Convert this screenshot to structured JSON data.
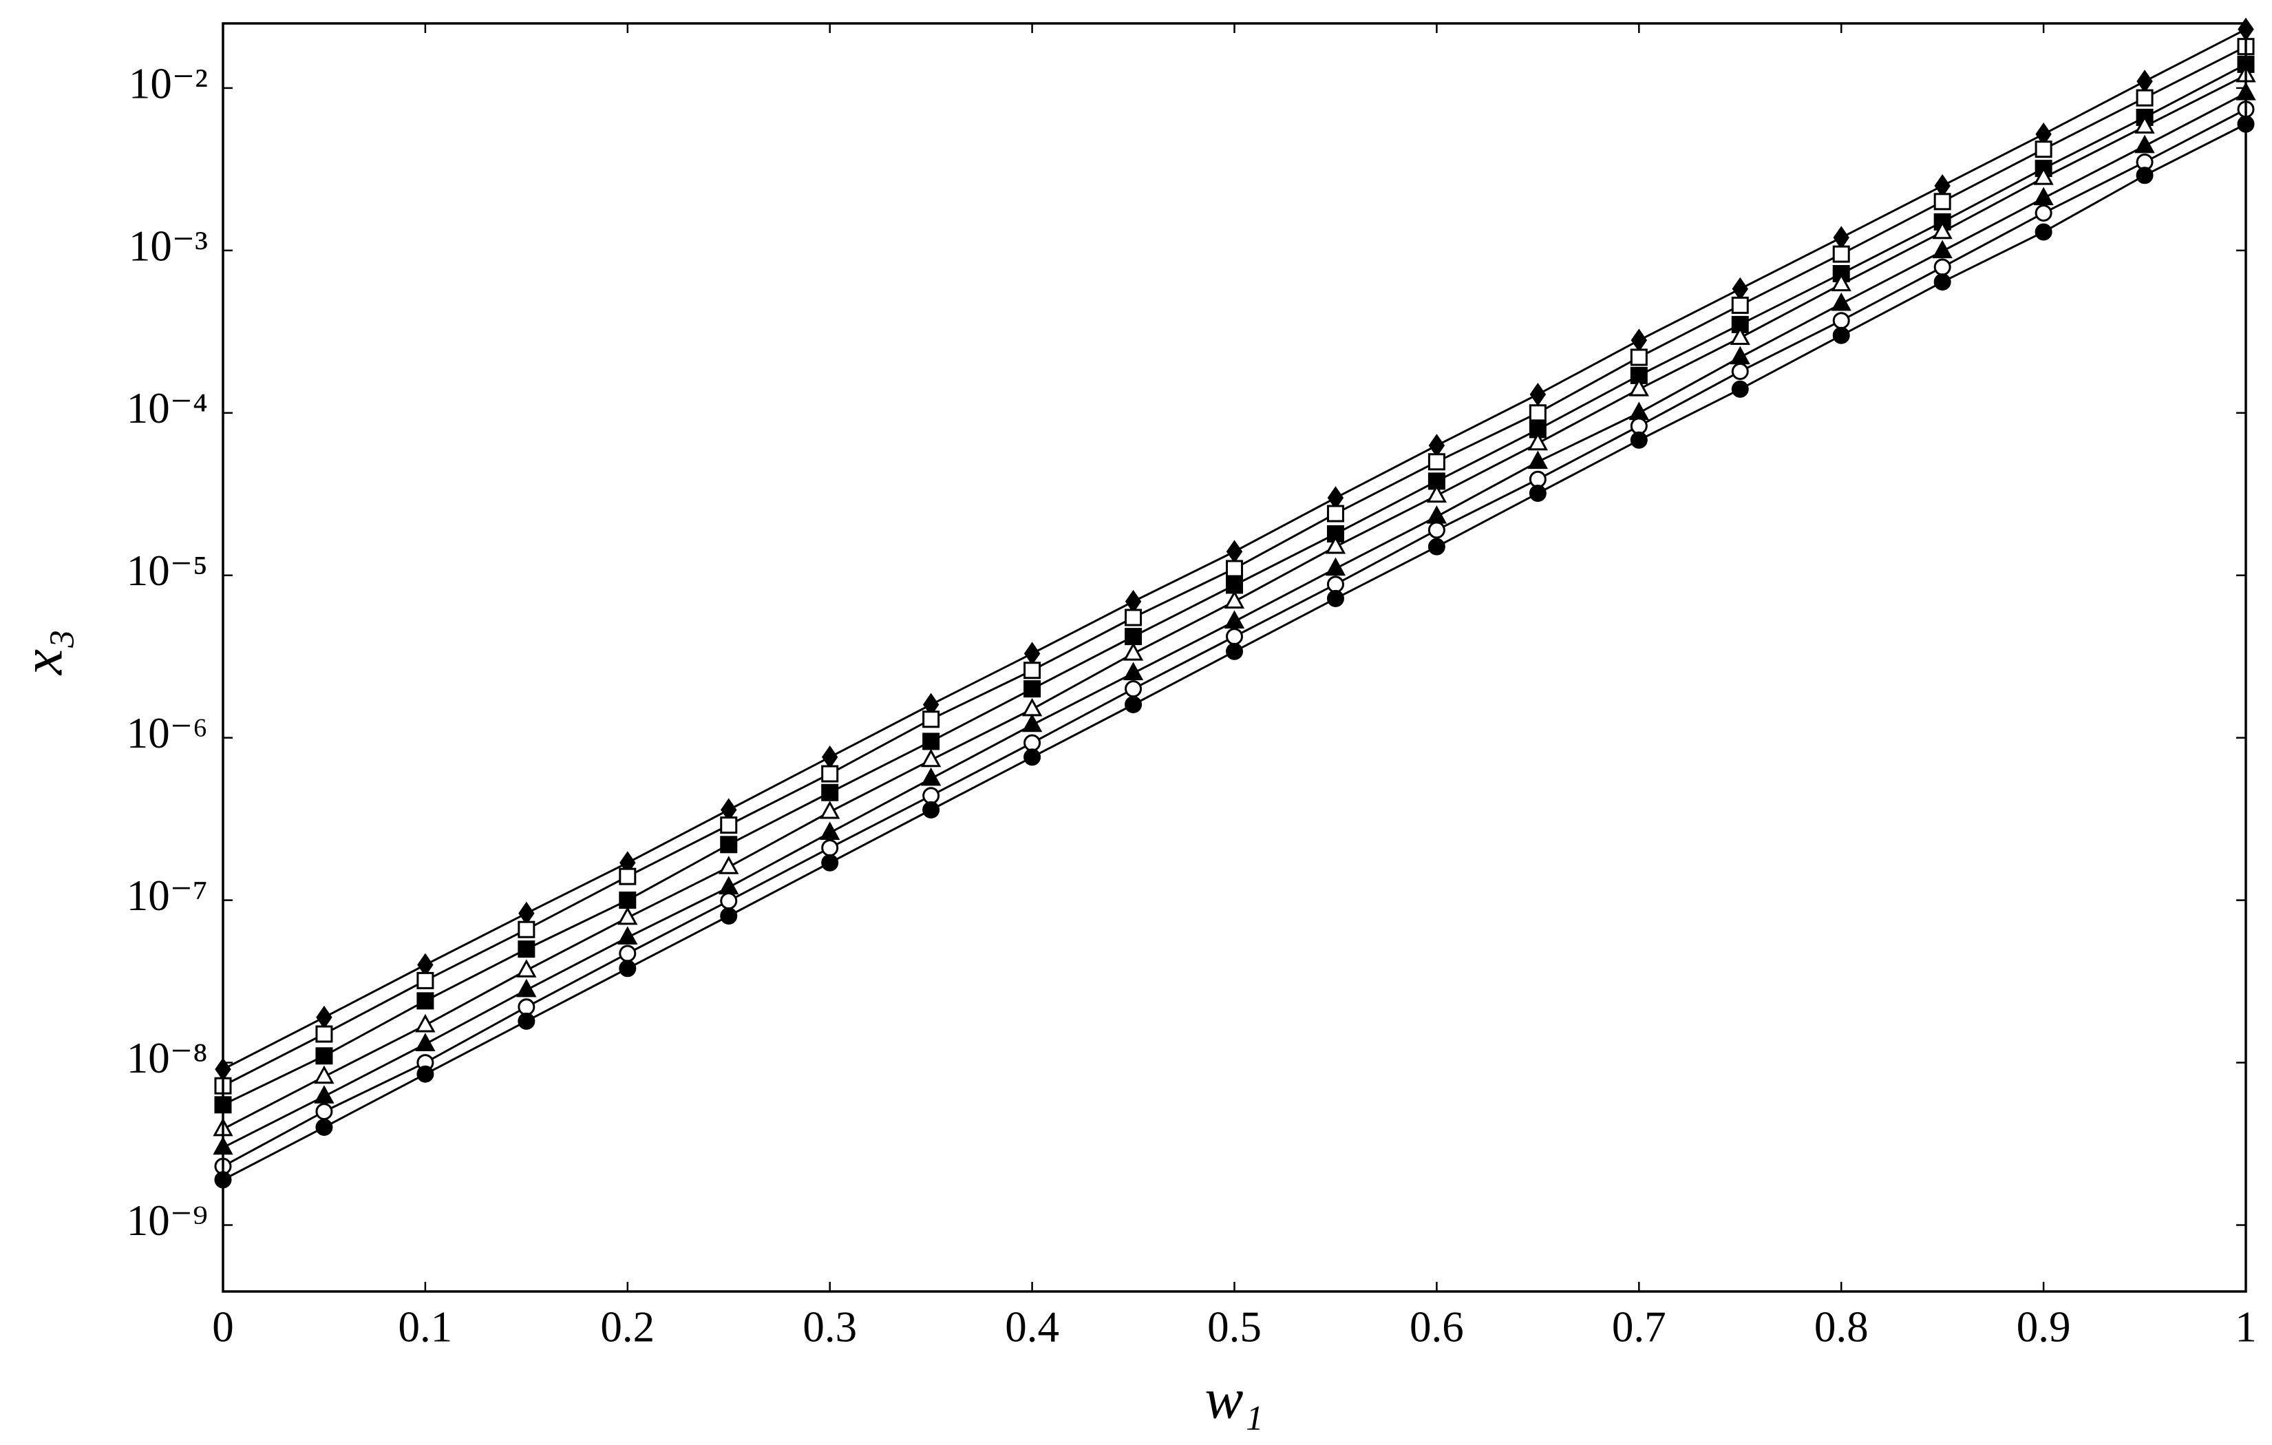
{
  "chart_data": {
    "type": "line",
    "xlabel": "w₁",
    "ylabel": "x₃",
    "log_y": true,
    "xlim": [
      0,
      1
    ],
    "xticks": [
      0,
      0.1,
      0.2,
      0.3,
      0.4,
      0.5,
      0.6,
      0.7,
      0.8,
      0.9,
      1
    ],
    "ylim": [
      3.9e-10,
      0.025
    ],
    "yticks": [
      {
        "value": 1e-09,
        "label": "10⁻⁹"
      },
      {
        "value": 1e-08,
        "label": "10⁻⁸"
      },
      {
        "value": 1e-07,
        "label": "10⁻⁷"
      },
      {
        "value": 1e-06,
        "label": "10⁻⁶"
      },
      {
        "value": 1e-05,
        "label": "10⁻⁵"
      },
      {
        "value": 0.0001,
        "label": "10⁻⁴"
      },
      {
        "value": 0.001,
        "label": "10⁻³"
      },
      {
        "value": 0.01,
        "label": "10⁻²"
      }
    ],
    "x": [
      0,
      0.05,
      0.1,
      0.15,
      0.2,
      0.25,
      0.3,
      0.35,
      0.4,
      0.45,
      0.5,
      0.55,
      0.6,
      0.65,
      0.7,
      0.75,
      0.8,
      0.85,
      0.9,
      0.95,
      1
    ],
    "series": [
      {
        "color": "#000000",
        "marker": "diamond",
        "values": [
          9.1e-09,
          1.9e-08,
          4e-08,
          8.3e-08,
          1.7e-07,
          3.6e-07,
          7.6e-07,
          1.6e-06,
          3.3e-06,
          6.9e-06,
          1.4e-05,
          3e-05,
          6.3e-05,
          0.00013,
          0.00028,
          0.00058,
          0.0012,
          0.0025,
          0.0052,
          0.011,
          0.023
        ]
      },
      {
        "color": "#000000",
        "marker": "square-open",
        "values": [
          7.2e-09,
          1.5e-08,
          3.2e-08,
          6.6e-08,
          1.4e-07,
          2.9e-07,
          6e-07,
          1.3e-06,
          2.6e-06,
          5.5e-06,
          1.1e-05,
          2.4e-05,
          5e-05,
          0.0001,
          0.00022,
          0.00046,
          0.00095,
          0.002,
          0.0042,
          0.0087,
          0.018
        ]
      },
      {
        "color": "#000000",
        "marker": "square",
        "values": [
          5.5e-09,
          1.1e-08,
          2.4e-08,
          5e-08,
          1e-07,
          2.2e-07,
          4.6e-07,
          9.5e-07,
          2e-06,
          4.2e-06,
          8.7e-06,
          1.8e-05,
          3.8e-05,
          7.9e-05,
          0.00017,
          0.00035,
          0.00072,
          0.0015,
          0.0032,
          0.0066,
          0.014
        ]
      },
      {
        "color": "#000000",
        "marker": "triangle-open",
        "values": [
          3.9e-09,
          8.2e-09,
          1.7e-08,
          3.7e-08,
          7.8e-08,
          1.6e-07,
          3.5e-07,
          7.3e-07,
          1.5e-06,
          3.3e-06,
          6.9e-06,
          1.5e-05,
          3.1e-05,
          6.5e-05,
          0.00014,
          0.00029,
          0.00062,
          0.0013,
          0.0028,
          0.0058,
          0.012
        ]
      },
      {
        "color": "#000000",
        "marker": "triangle",
        "values": [
          3e-09,
          6.2e-09,
          1.3e-08,
          2.8e-08,
          5.9e-08,
          1.2e-07,
          2.6e-07,
          5.6e-07,
          1.2e-06,
          2.5e-06,
          5.2e-06,
          1.1e-05,
          2.3e-05,
          5e-05,
          0.0001,
          0.00022,
          0.00047,
          0.00099,
          0.0021,
          0.0044,
          0.0093
        ]
      },
      {
        "color": "#000000",
        "marker": "circle-open",
        "values": [
          2.3e-09,
          5e-09,
          1e-08,
          2.2e-08,
          4.7e-08,
          9.9e-08,
          2.1e-07,
          4.4e-07,
          9.3e-07,
          2e-06,
          4.2e-06,
          8.8e-06,
          1.9e-05,
          3.9e-05,
          8.3e-05,
          0.00018,
          0.00037,
          0.00079,
          0.0017,
          0.0035,
          0.0074
        ]
      },
      {
        "color": "#000000",
        "marker": "circle",
        "values": [
          1.9e-09,
          4e-09,
          8.5e-09,
          1.8e-08,
          3.8e-08,
          8e-08,
          1.7e-07,
          3.6e-07,
          7.6e-07,
          1.6e-06,
          3.4e-06,
          7.2e-06,
          1.5e-05,
          3.2e-05,
          6.8e-05,
          0.00014,
          0.0003,
          0.00064,
          0.0013,
          0.0029,
          0.006
        ]
      }
    ]
  }
}
